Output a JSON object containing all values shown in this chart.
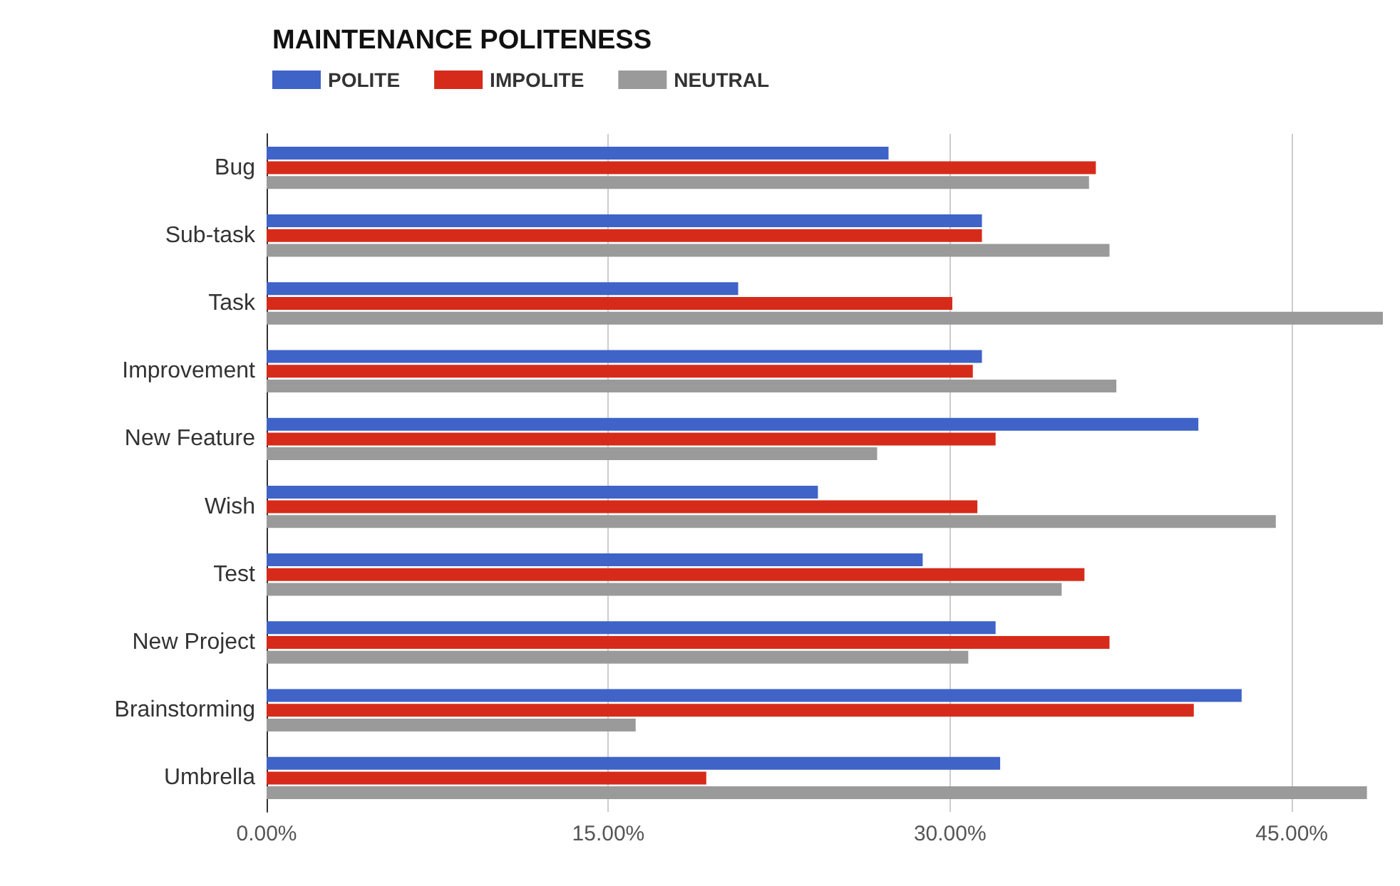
{
  "chart_data": {
    "type": "bar",
    "orientation": "horizontal",
    "title": "MAINTENANCE POLITENESS",
    "categories": [
      "Bug",
      "Sub-task",
      "Task",
      "Improvement",
      "New Feature",
      "Wish",
      "Test",
      "New Project",
      "Brainstorming",
      "Umbrella"
    ],
    "series": [
      {
        "name": "POLITE",
        "color": "#3f63c7",
        "values": [
          27.3,
          31.4,
          20.7,
          31.4,
          40.9,
          24.2,
          28.8,
          32.0,
          42.8,
          32.2
        ]
      },
      {
        "name": "IMPOLITE",
        "color": "#d62b1a",
        "values": [
          36.4,
          31.4,
          30.1,
          31.0,
          32.0,
          31.2,
          35.9,
          37.0,
          40.7,
          19.3
        ]
      },
      {
        "name": "NEUTRAL",
        "color": "#9a9a9a",
        "values": [
          36.1,
          37.0,
          49.0,
          37.3,
          26.8,
          44.3,
          34.9,
          30.8,
          16.2,
          48.3
        ]
      }
    ],
    "xlim": [
      0,
      49
    ],
    "xticks": [
      {
        "value": 0,
        "label": "0.00%"
      },
      {
        "value": 15,
        "label": "15.00%"
      },
      {
        "value": 30,
        "label": "30.00%"
      },
      {
        "value": 45,
        "label": "45.00%"
      }
    ],
    "grid": "x",
    "legend": "top left"
  }
}
